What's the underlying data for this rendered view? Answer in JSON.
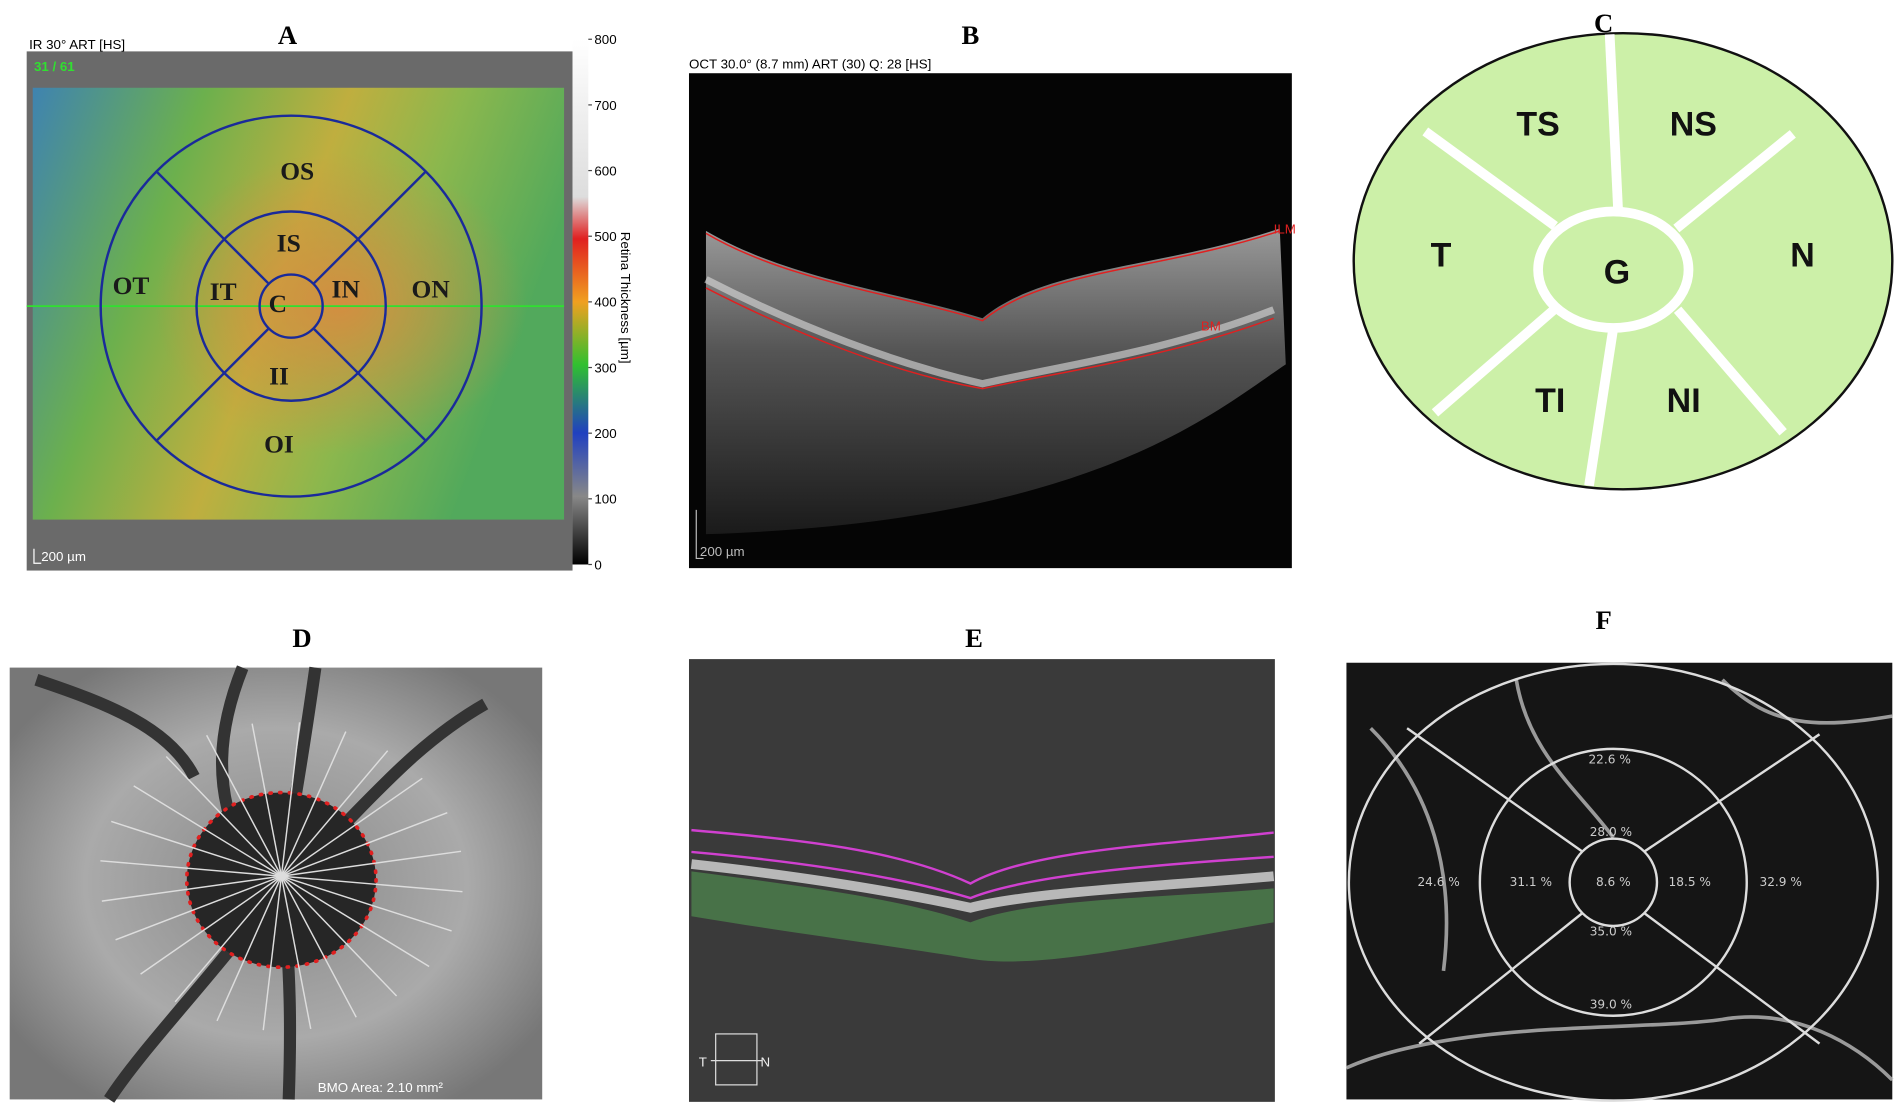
{
  "panels": [
    {
      "label": "A",
      "header": "IR 30° ART [HS]",
      "counter": "31 / 61",
      "sectors": [
        "OS",
        "IS",
        "OT",
        "IT",
        "C",
        "IN",
        "ON",
        "II",
        "OI"
      ],
      "scale_bar": "200 µm",
      "colorbar": {
        "title": "Retina  Thickness [µm]",
        "ticks": [
          800,
          700,
          600,
          500,
          400,
          300,
          200,
          100,
          0
        ]
      }
    },
    {
      "label": "B",
      "header": "OCT 30.0° (8.7 mm) ART (30) Q: 28 [HS]",
      "layers": [
        "ILM",
        "BM"
      ],
      "scale_bar": "200 µm"
    },
    {
      "label": "C",
      "sectors": [
        "TS",
        "NS",
        "T",
        "G",
        "N",
        "TI",
        "NI"
      ]
    },
    {
      "label": "D",
      "caption": "BMO Area: 2.10 mm²"
    },
    {
      "label": "E",
      "orientation": [
        "T",
        "N"
      ]
    },
    {
      "label": "F",
      "sectors": [
        "22.6 %",
        "28.0 %",
        "24.6 %",
        "31.1 %",
        "8.6 %",
        "18.5 %",
        "32.9 %",
        "35.0 %",
        "39.0 %"
      ]
    }
  ]
}
